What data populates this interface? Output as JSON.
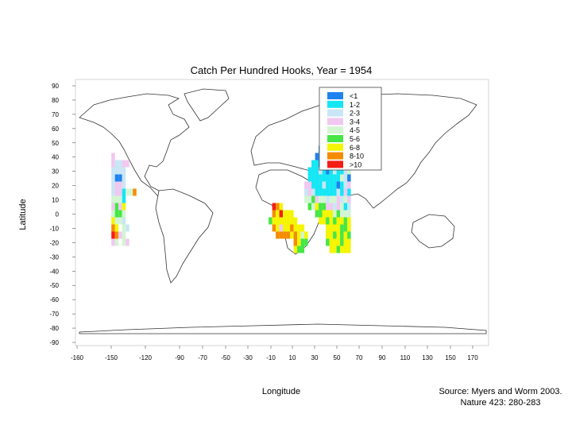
{
  "chart_data": {
    "type": "heatmap",
    "title": "Catch Per Hundred Hooks, Year = 1954",
    "xlabel": "Longitude",
    "ylabel": "Latitude",
    "x_ticks": [
      "-160",
      "-150",
      "-120",
      "-90",
      "-70",
      "-50",
      "-30",
      "-10",
      "10",
      "30",
      "50",
      "70",
      "90",
      "110",
      "130",
      "150",
      "170"
    ],
    "y_ticks": [
      "90",
      "80",
      "70",
      "60",
      "50",
      "40",
      "30",
      "20",
      "10",
      "0",
      "-10",
      "-20",
      "-30",
      "-40",
      "-50",
      "-60",
      "-70",
      "-80",
      "-90"
    ],
    "legend": {
      "placement": "top-center",
      "entries": [
        {
          "label": "<1",
          "color": "#1e82f0"
        },
        {
          "label": "1-2",
          "color": "#14e6f5"
        },
        {
          "label": "2-3",
          "color": "#c8e6f5"
        },
        {
          "label": "3-4",
          "color": "#f0c8f0"
        },
        {
          "label": "4-5",
          "color": "#d2f5d2"
        },
        {
          "label": "5-6",
          "color": "#46e646"
        },
        {
          "label": "6-8",
          "color": "#f5f500"
        },
        {
          "label": "8-10",
          "color": "#f58c00"
        },
        {
          "label": ">10",
          "color": "#f51e14"
        }
      ]
    },
    "cells": [
      {
        "lon": -160,
        "lat": 40,
        "cls": 3
      },
      {
        "lon": -160,
        "lat": 35,
        "cls": 3
      },
      {
        "lon": -155,
        "lat": 35,
        "cls": 2
      },
      {
        "lon": -150,
        "lat": 35,
        "cls": 2
      },
      {
        "lon": -145,
        "lat": 35,
        "cls": 3
      },
      {
        "lon": -140,
        "lat": 35,
        "cls": 3
      },
      {
        "lon": -160,
        "lat": 30,
        "cls": 2
      },
      {
        "lon": -155,
        "lat": 30,
        "cls": 2
      },
      {
        "lon": -150,
        "lat": 30,
        "cls": 2
      },
      {
        "lon": -145,
        "lat": 30,
        "cls": 2
      },
      {
        "lon": -160,
        "lat": 25,
        "cls": 2
      },
      {
        "lon": -155,
        "lat": 25,
        "cls": 0
      },
      {
        "lon": -150,
        "lat": 25,
        "cls": 0
      },
      {
        "lon": -145,
        "lat": 25,
        "cls": 2
      },
      {
        "lon": -160,
        "lat": 20,
        "cls": 2
      },
      {
        "lon": -155,
        "lat": 20,
        "cls": 3
      },
      {
        "lon": -150,
        "lat": 20,
        "cls": 3
      },
      {
        "lon": -145,
        "lat": 20,
        "cls": 2
      },
      {
        "lon": -160,
        "lat": 15,
        "cls": 2
      },
      {
        "lon": -155,
        "lat": 15,
        "cls": 3
      },
      {
        "lon": -150,
        "lat": 15,
        "cls": 3
      },
      {
        "lon": -145,
        "lat": 15,
        "cls": 1
      },
      {
        "lon": -140,
        "lat": 15,
        "cls": 4
      },
      {
        "lon": -135,
        "lat": 15,
        "cls": 4
      },
      {
        "lon": -130,
        "lat": 15,
        "cls": 7
      },
      {
        "lon": -160,
        "lat": 10,
        "cls": 4
      },
      {
        "lon": -155,
        "lat": 10,
        "cls": 4
      },
      {
        "lon": -150,
        "lat": 10,
        "cls": 4
      },
      {
        "lon": -145,
        "lat": 10,
        "cls": 1
      },
      {
        "lon": -160,
        "lat": 5,
        "cls": 3
      },
      {
        "lon": -155,
        "lat": 5,
        "cls": 5
      },
      {
        "lon": -150,
        "lat": 5,
        "cls": 3
      },
      {
        "lon": -145,
        "lat": 5,
        "cls": 6
      },
      {
        "lon": -160,
        "lat": 0,
        "cls": 4
      },
      {
        "lon": -155,
        "lat": 0,
        "cls": 5
      },
      {
        "lon": -150,
        "lat": 0,
        "cls": 5
      },
      {
        "lon": -145,
        "lat": 0,
        "cls": 4
      },
      {
        "lon": -160,
        "lat": -5,
        "cls": 6
      },
      {
        "lon": -155,
        "lat": -5,
        "cls": 4
      },
      {
        "lon": -150,
        "lat": -5,
        "cls": 4
      },
      {
        "lon": -145,
        "lat": -5,
        "cls": 2
      },
      {
        "lon": -160,
        "lat": -10,
        "cls": 7
      },
      {
        "lon": -155,
        "lat": -10,
        "cls": 6
      },
      {
        "lon": -145,
        "lat": -10,
        "cls": 4
      },
      {
        "lon": -140,
        "lat": -10,
        "cls": 2
      },
      {
        "lon": -160,
        "lat": -15,
        "cls": 8
      },
      {
        "lon": -155,
        "lat": -15,
        "cls": 7
      },
      {
        "lon": -150,
        "lat": -15,
        "cls": 3
      },
      {
        "lon": -145,
        "lat": -15,
        "cls": 4
      },
      {
        "lon": -160,
        "lat": -20,
        "cls": 3
      },
      {
        "lon": -155,
        "lat": -20,
        "cls": 4
      },
      {
        "lon": -145,
        "lat": -20,
        "cls": 4
      },
      {
        "lon": -140,
        "lat": -20,
        "cls": 3
      },
      {
        "lon": 65,
        "lat": 5,
        "cls": 8
      },
      {
        "lon": 70,
        "lat": 5,
        "cls": 7
      },
      {
        "lon": 75,
        "lat": 5,
        "cls": 6
      },
      {
        "lon": 65,
        "lat": 0,
        "cls": 7
      },
      {
        "lon": 70,
        "lat": 0,
        "cls": 6
      },
      {
        "lon": 75,
        "lat": 0,
        "cls": 8
      },
      {
        "lon": 80,
        "lat": 0,
        "cls": 6
      },
      {
        "lon": 85,
        "lat": 0,
        "cls": 6
      },
      {
        "lon": 90,
        "lat": 0,
        "cls": 6
      },
      {
        "lon": 60,
        "lat": -5,
        "cls": 5
      },
      {
        "lon": 65,
        "lat": -5,
        "cls": 6
      },
      {
        "lon": 70,
        "lat": -5,
        "cls": 6
      },
      {
        "lon": 75,
        "lat": -5,
        "cls": 6
      },
      {
        "lon": 80,
        "lat": -5,
        "cls": 6
      },
      {
        "lon": 85,
        "lat": -5,
        "cls": 6
      },
      {
        "lon": 90,
        "lat": -5,
        "cls": 6
      },
      {
        "lon": 95,
        "lat": -5,
        "cls": 6
      },
      {
        "lon": 65,
        "lat": -10,
        "cls": 7
      },
      {
        "lon": 70,
        "lat": -10,
        "cls": 6
      },
      {
        "lon": 75,
        "lat": -10,
        "cls": 3
      },
      {
        "lon": 80,
        "lat": -10,
        "cls": 6
      },
      {
        "lon": 85,
        "lat": -10,
        "cls": 6
      },
      {
        "lon": 90,
        "lat": -10,
        "cls": 7
      },
      {
        "lon": 95,
        "lat": -10,
        "cls": 6
      },
      {
        "lon": 100,
        "lat": -10,
        "cls": 6
      },
      {
        "lon": 105,
        "lat": -10,
        "cls": 6
      },
      {
        "lon": 70,
        "lat": -15,
        "cls": 7
      },
      {
        "lon": 75,
        "lat": -15,
        "cls": 7
      },
      {
        "lon": 80,
        "lat": -15,
        "cls": 7
      },
      {
        "lon": 85,
        "lat": -15,
        "cls": 7
      },
      {
        "lon": 90,
        "lat": -15,
        "cls": 6
      },
      {
        "lon": 95,
        "lat": -15,
        "cls": 7
      },
      {
        "lon": 100,
        "lat": -15,
        "cls": 6
      },
      {
        "lon": 105,
        "lat": -15,
        "cls": 4
      },
      {
        "lon": 110,
        "lat": -15,
        "cls": 6
      },
      {
        "lon": 95,
        "lat": -20,
        "cls": 7
      },
      {
        "lon": 100,
        "lat": -20,
        "cls": 6
      },
      {
        "lon": 105,
        "lat": -20,
        "cls": 5
      },
      {
        "lon": 110,
        "lat": -20,
        "cls": 5
      },
      {
        "lon": 95,
        "lat": -25,
        "cls": 6
      },
      {
        "lon": 100,
        "lat": -25,
        "cls": 5
      },
      {
        "lon": 105,
        "lat": -25,
        "cls": 5
      },
      {
        "lon": 130,
        "lat": 45,
        "cls": 0
      },
      {
        "lon": 135,
        "lat": 45,
        "cls": 0
      },
      {
        "lon": 140,
        "lat": 45,
        "cls": 0
      },
      {
        "lon": 145,
        "lat": 45,
        "cls": 0
      },
      {
        "lon": 150,
        "lat": 45,
        "cls": 0
      },
      {
        "lon": 155,
        "lat": 45,
        "cls": 0
      },
      {
        "lon": 125,
        "lat": 40,
        "cls": 0
      },
      {
        "lon": 130,
        "lat": 40,
        "cls": 0
      },
      {
        "lon": 135,
        "lat": 40,
        "cls": 1
      },
      {
        "lon": 140,
        "lat": 40,
        "cls": 0
      },
      {
        "lon": 145,
        "lat": 40,
        "cls": 0
      },
      {
        "lon": 150,
        "lat": 40,
        "cls": 0
      },
      {
        "lon": 155,
        "lat": 40,
        "cls": 0
      },
      {
        "lon": 160,
        "lat": 40,
        "cls": 5
      },
      {
        "lon": 165,
        "lat": 40,
        "cls": 4
      },
      {
        "lon": 170,
        "lat": 40,
        "cls": 4
      },
      {
        "lon": 120,
        "lat": 35,
        "cls": 1
      },
      {
        "lon": 125,
        "lat": 35,
        "cls": 1
      },
      {
        "lon": 130,
        "lat": 35,
        "cls": 0
      },
      {
        "lon": 135,
        "lat": 35,
        "cls": 1
      },
      {
        "lon": 140,
        "lat": 35,
        "cls": 1
      },
      {
        "lon": 145,
        "lat": 35,
        "cls": 2
      },
      {
        "lon": 150,
        "lat": 35,
        "cls": 2
      },
      {
        "lon": 155,
        "lat": 35,
        "cls": 1
      },
      {
        "lon": 160,
        "lat": 35,
        "cls": 3
      },
      {
        "lon": 165,
        "lat": 35,
        "cls": 5
      },
      {
        "lon": 170,
        "lat": 35,
        "cls": 4
      },
      {
        "lon": 115,
        "lat": 30,
        "cls": 1
      },
      {
        "lon": 120,
        "lat": 30,
        "cls": 1
      },
      {
        "lon": 125,
        "lat": 30,
        "cls": 1
      },
      {
        "lon": 130,
        "lat": 30,
        "cls": 2
      },
      {
        "lon": 135,
        "lat": 30,
        "cls": 1
      },
      {
        "lon": 140,
        "lat": 30,
        "cls": 0
      },
      {
        "lon": 145,
        "lat": 30,
        "cls": 1
      },
      {
        "lon": 150,
        "lat": 30,
        "cls": 2
      },
      {
        "lon": 155,
        "lat": 30,
        "cls": 1
      },
      {
        "lon": 160,
        "lat": 30,
        "cls": 1
      },
      {
        "lon": 165,
        "lat": 30,
        "cls": 2
      },
      {
        "lon": 170,
        "lat": 30,
        "cls": 4
      },
      {
        "lon": 115,
        "lat": 25,
        "cls": 1
      },
      {
        "lon": 120,
        "lat": 25,
        "cls": 1
      },
      {
        "lon": 125,
        "lat": 25,
        "cls": 1
      },
      {
        "lon": 130,
        "lat": 25,
        "cls": 1
      },
      {
        "lon": 135,
        "lat": 25,
        "cls": 1
      },
      {
        "lon": 140,
        "lat": 25,
        "cls": 1
      },
      {
        "lon": 145,
        "lat": 25,
        "cls": 1
      },
      {
        "lon": 150,
        "lat": 25,
        "cls": 1
      },
      {
        "lon": 155,
        "lat": 25,
        "cls": 1
      },
      {
        "lon": 160,
        "lat": 25,
        "cls": 4
      },
      {
        "lon": 165,
        "lat": 25,
        "cls": 2
      },
      {
        "lon": 170,
        "lat": 25,
        "cls": 0
      },
      {
        "lon": 110,
        "lat": 20,
        "cls": 3
      },
      {
        "lon": 115,
        "lat": 20,
        "cls": 3
      },
      {
        "lon": 120,
        "lat": 20,
        "cls": 1
      },
      {
        "lon": 125,
        "lat": 20,
        "cls": 1
      },
      {
        "lon": 130,
        "lat": 20,
        "cls": 1
      },
      {
        "lon": 135,
        "lat": 20,
        "cls": 2
      },
      {
        "lon": 140,
        "lat": 20,
        "cls": 1
      },
      {
        "lon": 145,
        "lat": 20,
        "cls": 1
      },
      {
        "lon": 150,
        "lat": 20,
        "cls": 1
      },
      {
        "lon": 155,
        "lat": 20,
        "cls": 0
      },
      {
        "lon": 160,
        "lat": 20,
        "cls": 1
      },
      {
        "lon": 165,
        "lat": 20,
        "cls": 2
      },
      {
        "lon": 170,
        "lat": 20,
        "cls": 3
      },
      {
        "lon": 110,
        "lat": 15,
        "cls": 2
      },
      {
        "lon": 115,
        "lat": 15,
        "cls": 3
      },
      {
        "lon": 120,
        "lat": 15,
        "cls": 2
      },
      {
        "lon": 125,
        "lat": 15,
        "cls": 1
      },
      {
        "lon": 130,
        "lat": 15,
        "cls": 1
      },
      {
        "lon": 135,
        "lat": 15,
        "cls": 1
      },
      {
        "lon": 140,
        "lat": 15,
        "cls": 1
      },
      {
        "lon": 145,
        "lat": 15,
        "cls": 1
      },
      {
        "lon": 150,
        "lat": 15,
        "cls": 1
      },
      {
        "lon": 155,
        "lat": 15,
        "cls": 2
      },
      {
        "lon": 160,
        "lat": 15,
        "cls": 1
      },
      {
        "lon": 165,
        "lat": 15,
        "cls": 3
      },
      {
        "lon": 170,
        "lat": 15,
        "cls": 1
      },
      {
        "lon": 110,
        "lat": 10,
        "cls": 4
      },
      {
        "lon": 115,
        "lat": 10,
        "cls": 4
      },
      {
        "lon": 120,
        "lat": 10,
        "cls": 5
      },
      {
        "lon": 125,
        "lat": 10,
        "cls": 3
      },
      {
        "lon": 130,
        "lat": 10,
        "cls": 4
      },
      {
        "lon": 135,
        "lat": 10,
        "cls": 4
      },
      {
        "lon": 140,
        "lat": 10,
        "cls": 2
      },
      {
        "lon": 145,
        "lat": 10,
        "cls": 4
      },
      {
        "lon": 150,
        "lat": 10,
        "cls": 4
      },
      {
        "lon": 155,
        "lat": 10,
        "cls": 3
      },
      {
        "lon": 160,
        "lat": 10,
        "cls": 2
      },
      {
        "lon": 165,
        "lat": 10,
        "cls": 4
      },
      {
        "lon": 170,
        "lat": 10,
        "cls": 3
      },
      {
        "lon": 115,
        "lat": 5,
        "cls": 5
      },
      {
        "lon": 120,
        "lat": 5,
        "cls": 4
      },
      {
        "lon": 125,
        "lat": 5,
        "cls": 6
      },
      {
        "lon": 130,
        "lat": 5,
        "cls": 5
      },
      {
        "lon": 135,
        "lat": 5,
        "cls": 5
      },
      {
        "lon": 140,
        "lat": 5,
        "cls": 3
      },
      {
        "lon": 145,
        "lat": 5,
        "cls": 3
      },
      {
        "lon": 150,
        "lat": 5,
        "cls": 2
      },
      {
        "lon": 155,
        "lat": 5,
        "cls": 3
      },
      {
        "lon": 160,
        "lat": 5,
        "cls": 4
      },
      {
        "lon": 165,
        "lat": 5,
        "cls": 1
      },
      {
        "lon": 170,
        "lat": 5,
        "cls": 2
      },
      {
        "lon": 125,
        "lat": 0,
        "cls": 5
      },
      {
        "lon": 130,
        "lat": 0,
        "cls": 5
      },
      {
        "lon": 135,
        "lat": 0,
        "cls": 6
      },
      {
        "lon": 140,
        "lat": 0,
        "cls": 6
      },
      {
        "lon": 145,
        "lat": 0,
        "cls": 6
      },
      {
        "lon": 150,
        "lat": 0,
        "cls": 4
      },
      {
        "lon": 155,
        "lat": 0,
        "cls": 5
      },
      {
        "lon": 160,
        "lat": 0,
        "cls": 4
      },
      {
        "lon": 165,
        "lat": 0,
        "cls": 4
      },
      {
        "lon": 170,
        "lat": 0,
        "cls": 4
      },
      {
        "lon": 130,
        "lat": -5,
        "cls": 6
      },
      {
        "lon": 135,
        "lat": -5,
        "cls": 6
      },
      {
        "lon": 140,
        "lat": -5,
        "cls": 5
      },
      {
        "lon": 145,
        "lat": -5,
        "cls": 6
      },
      {
        "lon": 150,
        "lat": -5,
        "cls": 5
      },
      {
        "lon": 155,
        "lat": -5,
        "cls": 6
      },
      {
        "lon": 160,
        "lat": -5,
        "cls": 6
      },
      {
        "lon": 165,
        "lat": -5,
        "cls": 5
      },
      {
        "lon": 170,
        "lat": -5,
        "cls": 6
      },
      {
        "lon": 140,
        "lat": -10,
        "cls": 6
      },
      {
        "lon": 145,
        "lat": -10,
        "cls": 6
      },
      {
        "lon": 150,
        "lat": -10,
        "cls": 6
      },
      {
        "lon": 155,
        "lat": -10,
        "cls": 6
      },
      {
        "lon": 160,
        "lat": -10,
        "cls": 5
      },
      {
        "lon": 165,
        "lat": -10,
        "cls": 5
      },
      {
        "lon": 170,
        "lat": -10,
        "cls": 6
      },
      {
        "lon": 140,
        "lat": -15,
        "cls": 6
      },
      {
        "lon": 145,
        "lat": -15,
        "cls": 6
      },
      {
        "lon": 150,
        "lat": -15,
        "cls": 5
      },
      {
        "lon": 155,
        "lat": -15,
        "cls": 6
      },
      {
        "lon": 160,
        "lat": -15,
        "cls": 5
      },
      {
        "lon": 165,
        "lat": -15,
        "cls": 6
      },
      {
        "lon": 170,
        "lat": -15,
        "cls": 5
      },
      {
        "lon": 140,
        "lat": -20,
        "cls": 5
      },
      {
        "lon": 145,
        "lat": -20,
        "cls": 6
      },
      {
        "lon": 150,
        "lat": -20,
        "cls": 6
      },
      {
        "lon": 155,
        "lat": -20,
        "cls": 6
      },
      {
        "lon": 160,
        "lat": -20,
        "cls": 5
      },
      {
        "lon": 165,
        "lat": -20,
        "cls": 6
      },
      {
        "lon": 170,
        "lat": -20,
        "cls": 6
      },
      {
        "lon": 145,
        "lat": -25,
        "cls": 6
      },
      {
        "lon": 150,
        "lat": -25,
        "cls": 6
      },
      {
        "lon": 155,
        "lat": -25,
        "cls": 5
      },
      {
        "lon": 160,
        "lat": -25,
        "cls": 6
      },
      {
        "lon": 165,
        "lat": -25,
        "cls": 6
      },
      {
        "lon": 170,
        "lat": -25,
        "cls": 6
      }
    ]
  },
  "source": {
    "line1": "Source: Myers and Worm 2003.",
    "line2": "Nature 423: 280-283"
  }
}
